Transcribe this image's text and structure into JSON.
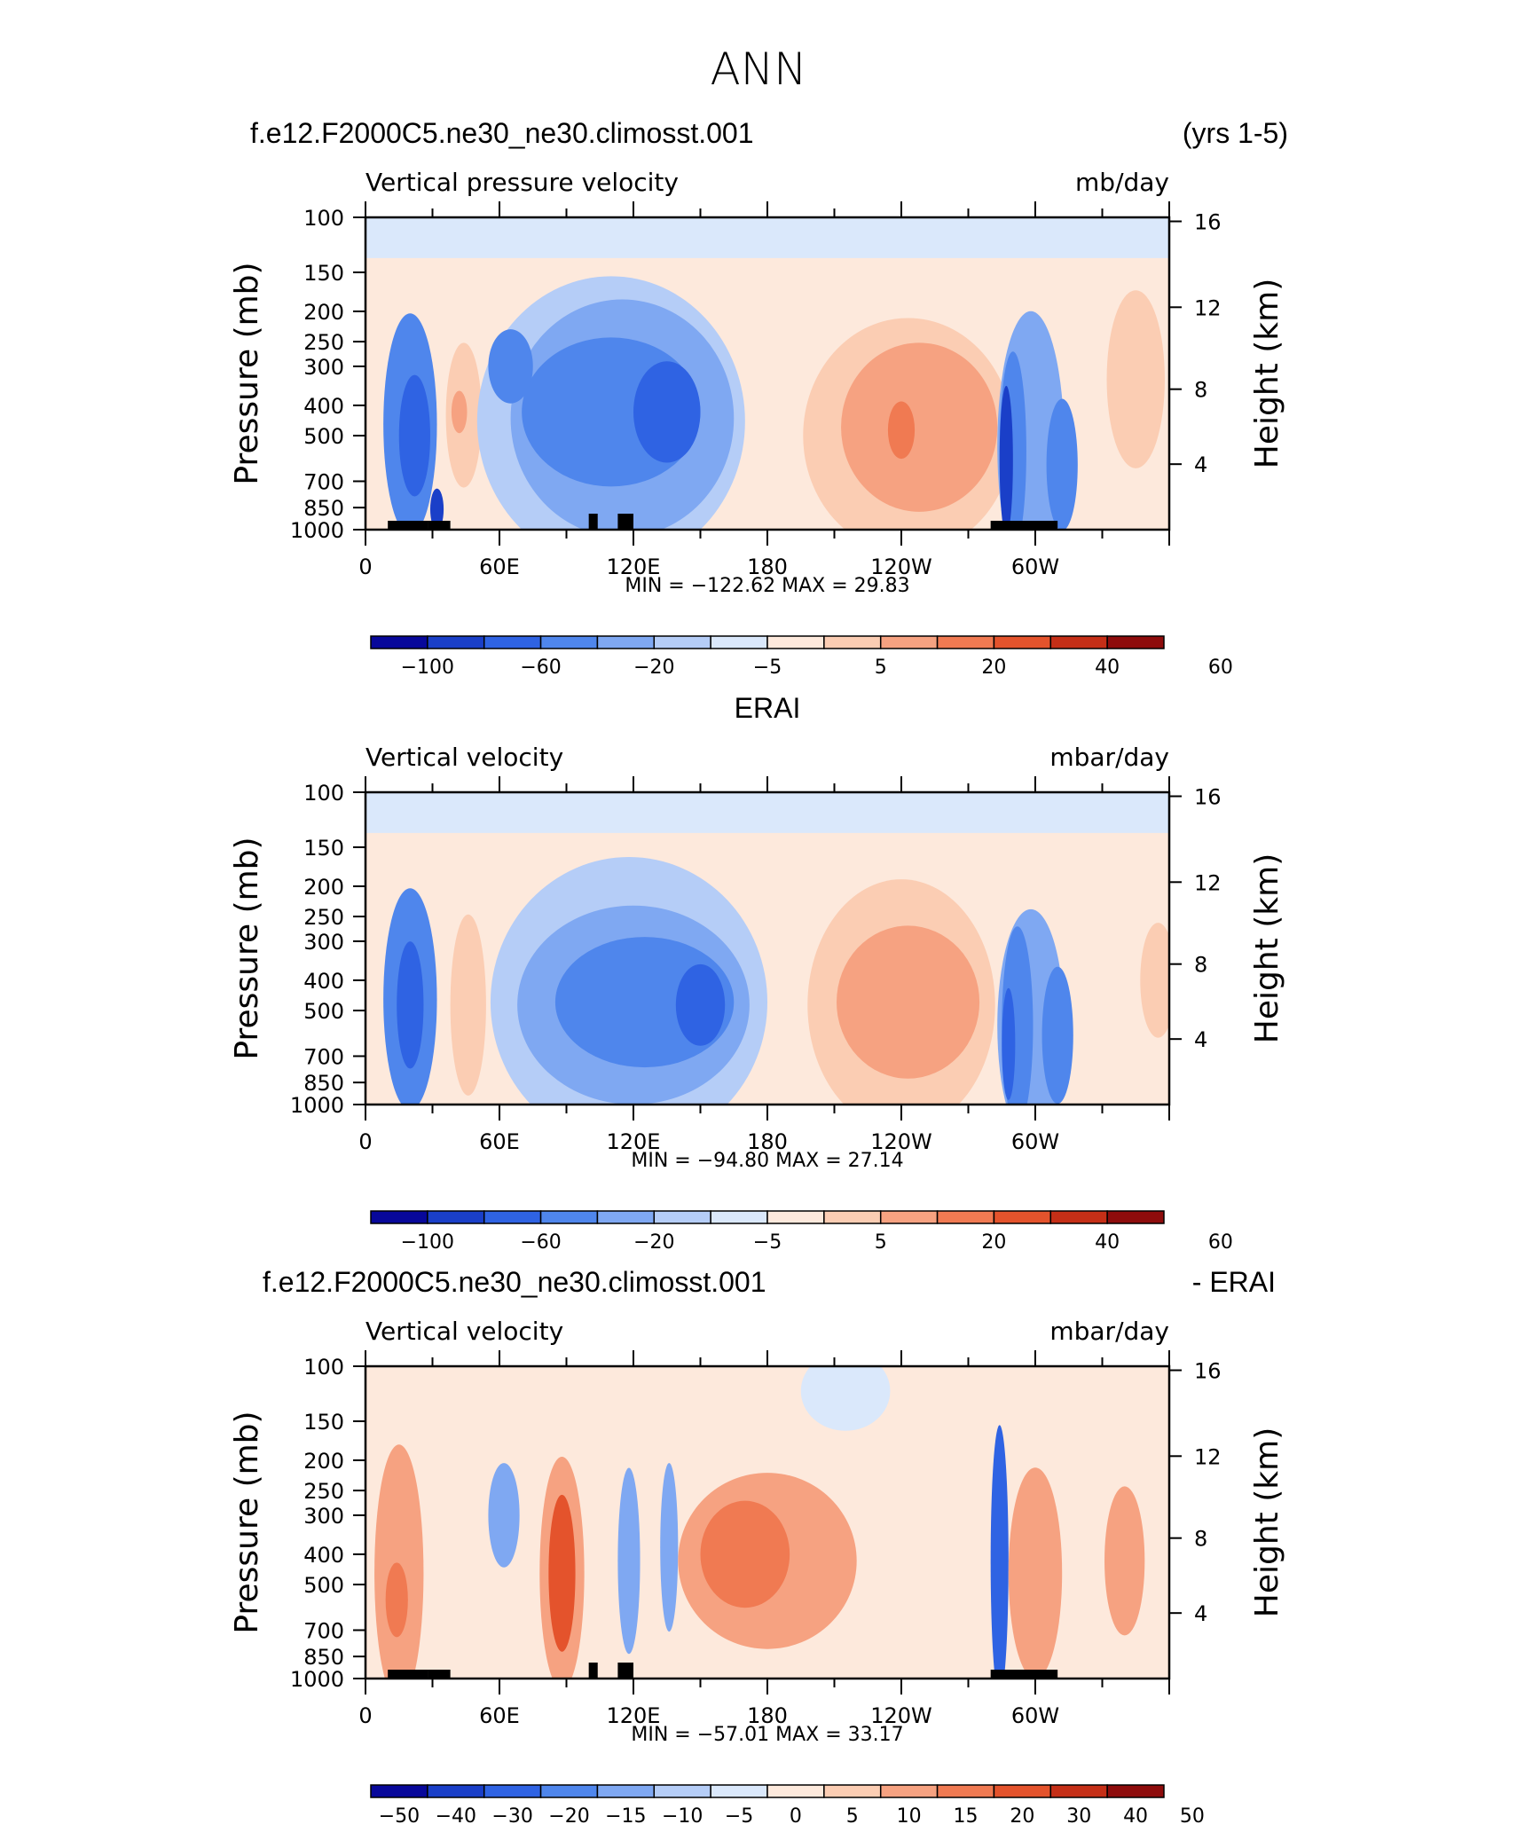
{
  "figure": {
    "title": "ANN"
  },
  "chart_data": [
    {
      "type": "heatmap",
      "header_left": "f.e12.F2000C5.ne30_ne30.climosst.001",
      "header_center": "",
      "header_right": "(yrs 1-5)",
      "variable": "Vertical pressure velocity",
      "units": "mb/day",
      "ylabel": "Pressure (mb)",
      "y2label": "Height (km)",
      "y_ticks": [
        "100",
        "150",
        "200",
        "250",
        "300",
        "400",
        "500",
        "700",
        "850",
        "1000"
      ],
      "y2_ticks": [
        "16",
        "12",
        "8",
        "4"
      ],
      "x_ticks": [
        "0",
        "60E",
        "120E",
        "180",
        "120W",
        "60W"
      ],
      "stats": "MIN = −122.62   MAX =   29.83",
      "colorbar_labels": [
        "−100",
        "−60",
        "−20",
        "−5",
        "5",
        "20",
        "40",
        "60"
      ],
      "colors": [
        "#08089a",
        "#1a3fc8",
        "#2f63e3",
        "#4f86ec",
        "#7fa8f2",
        "#b5cdf7",
        "#dae8fb",
        "#fde9dc",
        "#fbcdb3",
        "#f6a281",
        "#f07a52",
        "#e4532c",
        "#c52f17",
        "#8e0c0c"
      ],
      "ranges": {
        "0-360": "longitude",
        "1000-100": "pressure"
      },
      "blobs": [
        {
          "lon": 0,
          "lonw": 720,
          "p": 550,
          "pw": 900,
          "level": 7,
          "shape": 0
        },
        {
          "lon": 0,
          "lonw": 720,
          "p": 100,
          "pw": 70,
          "level": 6,
          "shape": 0
        },
        {
          "lon": 20,
          "lonw": 24,
          "p": 460,
          "pw": 620,
          "level": 3
        },
        {
          "lon": 22,
          "lonw": 14,
          "p": 500,
          "pw": 420,
          "level": 2
        },
        {
          "lon": 32,
          "lonw": 6,
          "p": 860,
          "pw": 260,
          "level": 1
        },
        {
          "lon": 44,
          "lonw": 16,
          "p": 430,
          "pw": 420,
          "level": 8
        },
        {
          "lon": 42,
          "lonw": 7,
          "p": 420,
          "pw": 130,
          "level": 9
        },
        {
          "lon": 110,
          "lonw": 120,
          "p": 450,
          "pw": 800,
          "level": 5
        },
        {
          "lon": 115,
          "lonw": 100,
          "p": 440,
          "pw": 620,
          "level": 4
        },
        {
          "lon": 110,
          "lonw": 80,
          "p": 420,
          "pw": 420,
          "level": 3
        },
        {
          "lon": 135,
          "lonw": 30,
          "p": 420,
          "pw": 300,
          "level": 2
        },
        {
          "lon": 65,
          "lonw": 20,
          "p": 300,
          "pw": 160,
          "level": 3
        },
        {
          "lon": 243,
          "lonw": 94,
          "p": 500,
          "pw": 700,
          "level": 8
        },
        {
          "lon": 248,
          "lonw": 70,
          "p": 470,
          "pw": 520,
          "level": 9
        },
        {
          "lon": 240,
          "lonw": 12,
          "p": 480,
          "pw": 200,
          "level": 10
        },
        {
          "lon": 298,
          "lonw": 30,
          "p": 540,
          "pw": 820,
          "level": 4
        },
        {
          "lon": 290,
          "lonw": 12,
          "p": 560,
          "pw": 700,
          "level": 3
        },
        {
          "lon": 287,
          "lonw": 6,
          "p": 600,
          "pw": 600,
          "level": 1
        },
        {
          "lon": 312,
          "lonw": 14,
          "p": 620,
          "pw": 560,
          "level": 3
        },
        {
          "lon": 345,
          "lonw": 26,
          "p": 330,
          "pw": 380,
          "level": 8
        }
      ],
      "land": [
        [
          10,
          28
        ],
        [
          28,
          38
        ],
        [
          100,
          104
        ],
        [
          113,
          120
        ],
        [
          280,
          310
        ]
      ]
    },
    {
      "type": "heatmap",
      "header_left": "",
      "header_center": "ERAI",
      "header_right": "",
      "variable": "Vertical velocity",
      "units": "mbar/day",
      "ylabel": "Pressure (mb)",
      "y2label": "Height (km)",
      "y_ticks": [
        "100",
        "150",
        "200",
        "250",
        "300",
        "400",
        "500",
        "700",
        "850",
        "1000"
      ],
      "y2_ticks": [
        "16",
        "12",
        "8",
        "4"
      ],
      "x_ticks": [
        "0",
        "60E",
        "120E",
        "180",
        "120W",
        "60W"
      ],
      "stats": "MIN = −94.80   MAX =   27.14",
      "colorbar_labels": [
        "−100",
        "−60",
        "−20",
        "−5",
        "5",
        "20",
        "40",
        "60"
      ],
      "colors": [
        "#08089a",
        "#1a3fc8",
        "#2f63e3",
        "#4f86ec",
        "#7fa8f2",
        "#b5cdf7",
        "#dae8fb",
        "#fde9dc",
        "#fbcdb3",
        "#f6a281",
        "#f07a52",
        "#e4532c",
        "#c52f17",
        "#8e0c0c"
      ],
      "blobs": [
        {
          "lon": 0,
          "lonw": 720,
          "p": 550,
          "pw": 900,
          "level": 7,
          "shape": 0
        },
        {
          "lon": 0,
          "lonw": 720,
          "p": 100,
          "pw": 70,
          "level": 6,
          "shape": 0
        },
        {
          "lon": 20,
          "lonw": 24,
          "p": 460,
          "pw": 620,
          "level": 3
        },
        {
          "lon": 20,
          "lonw": 12,
          "p": 480,
          "pw": 420,
          "level": 2
        },
        {
          "lon": 46,
          "lonw": 16,
          "p": 480,
          "pw": 560,
          "level": 8
        },
        {
          "lon": 118,
          "lonw": 124,
          "p": 470,
          "pw": 760,
          "level": 5
        },
        {
          "lon": 120,
          "lonw": 104,
          "p": 480,
          "pw": 600,
          "level": 4
        },
        {
          "lon": 125,
          "lonw": 80,
          "p": 470,
          "pw": 420,
          "level": 3
        },
        {
          "lon": 150,
          "lonw": 22,
          "p": 480,
          "pw": 280,
          "level": 2
        },
        {
          "lon": 240,
          "lonw": 84,
          "p": 480,
          "pw": 700,
          "level": 8
        },
        {
          "lon": 243,
          "lonw": 64,
          "p": 470,
          "pw": 480,
          "level": 9
        },
        {
          "lon": 298,
          "lonw": 30,
          "p": 560,
          "pw": 780,
          "level": 4
        },
        {
          "lon": 292,
          "lonw": 14,
          "p": 560,
          "pw": 700,
          "level": 3
        },
        {
          "lon": 288,
          "lonw": 6,
          "p": 640,
          "pw": 500,
          "level": 2
        },
        {
          "lon": 310,
          "lonw": 14,
          "p": 600,
          "pw": 560,
          "level": 3
        },
        {
          "lon": 355,
          "lonw": 16,
          "p": 400,
          "pw": 320,
          "level": 8
        }
      ],
      "land": []
    },
    {
      "type": "heatmap",
      "header_left": "f.e12.F2000C5.ne30_ne30.climosst.001",
      "header_center": "",
      "header_right": "- ERAI",
      "variable": "Vertical velocity",
      "units": "mbar/day",
      "ylabel": "Pressure (mb)",
      "y2label": "Height (km)",
      "y_ticks": [
        "100",
        "150",
        "200",
        "250",
        "300",
        "400",
        "500",
        "700",
        "850",
        "1000"
      ],
      "y2_ticks": [
        "16",
        "12",
        "8",
        "4"
      ],
      "x_ticks": [
        "0",
        "60E",
        "120E",
        "180",
        "120W",
        "60W"
      ],
      "stats": "MIN = −57.01   MAX =   33.17",
      "colorbar_labels": [
        "−50",
        "−40",
        "−30",
        "−20",
        "−15",
        "−10",
        "−5",
        "0",
        "5",
        "10",
        "15",
        "20",
        "30",
        "40",
        "50"
      ],
      "colors": [
        "#08089a",
        "#1a3fc8",
        "#2f63e3",
        "#4f86ec",
        "#7fa8f2",
        "#b5cdf7",
        "#dae8fb",
        "#fde9dc",
        "#fbcdb3",
        "#f6a281",
        "#f07a52",
        "#e4532c",
        "#c52f17",
        "#8e0c0c"
      ],
      "blobs": [
        {
          "lon": 0,
          "lonw": 720,
          "p": 550,
          "pw": 900,
          "level": 7,
          "shape": 0
        },
        {
          "lon": 215,
          "lonw": 40,
          "p": 120,
          "pw": 120,
          "level": 6
        },
        {
          "lon": 15,
          "lonw": 22,
          "p": 460,
          "pw": 680,
          "level": 9
        },
        {
          "lon": 14,
          "lonw": 10,
          "p": 560,
          "pw": 300,
          "level": 10
        },
        {
          "lon": 62,
          "lonw": 14,
          "p": 300,
          "pw": 220,
          "level": 4
        },
        {
          "lon": 88,
          "lonw": 20,
          "p": 460,
          "pw": 640,
          "level": 9
        },
        {
          "lon": 88,
          "lonw": 12,
          "p": 460,
          "pw": 480,
          "level": 11
        },
        {
          "lon": 118,
          "lonw": 10,
          "p": 420,
          "pw": 500,
          "level": 4
        },
        {
          "lon": 136,
          "lonw": 8,
          "p": 380,
          "pw": 420,
          "level": 4
        },
        {
          "lon": 180,
          "lonw": 80,
          "p": 420,
          "pw": 480,
          "level": 9
        },
        {
          "lon": 170,
          "lonw": 40,
          "p": 400,
          "pw": 300,
          "level": 10
        },
        {
          "lon": 284,
          "lonw": 8,
          "p": 420,
          "pw": 640,
          "level": 2
        },
        {
          "lon": 300,
          "lonw": 24,
          "p": 460,
          "pw": 600,
          "level": 9
        },
        {
          "lon": 340,
          "lonw": 18,
          "p": 420,
          "pw": 420,
          "level": 9
        }
      ],
      "land": [
        [
          10,
          28
        ],
        [
          28,
          38
        ],
        [
          100,
          104
        ],
        [
          113,
          120
        ],
        [
          280,
          310
        ]
      ]
    }
  ]
}
